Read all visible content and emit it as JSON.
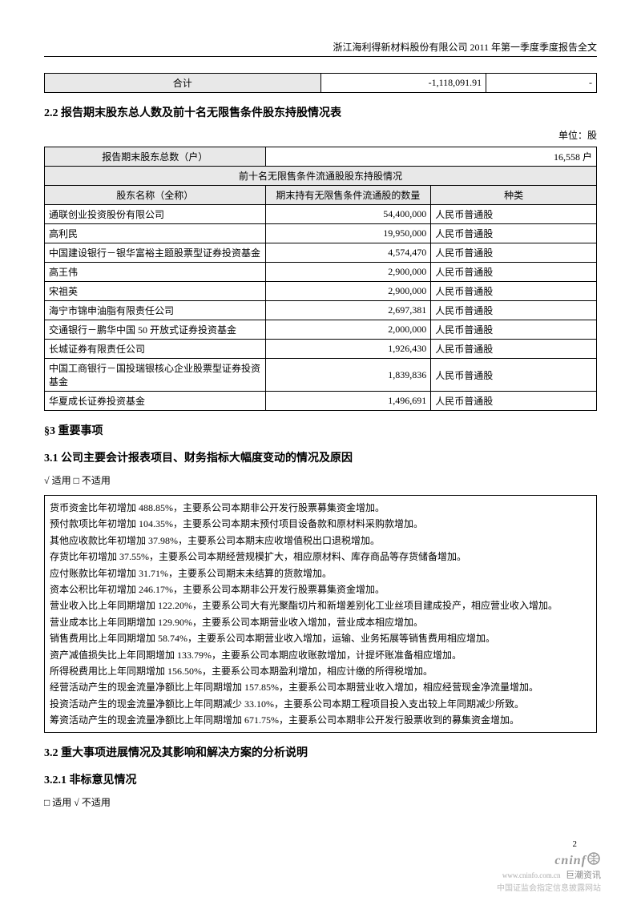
{
  "header": "浙江海利得新材料股份有限公司 2011 年第一季度季度报告全文",
  "total_table": {
    "label": "合计",
    "value": "-1,118,091.91",
    "value2": "-"
  },
  "section_2_2": {
    "title": "2.2 报告期末股东总人数及前十名无限售条件股东持股情况表",
    "unit": "单位：股",
    "shareholder_count_label": "报告期末股东总数（户）",
    "shareholder_count": "16,558 户",
    "sub_header": "前十名无限售条件流通股股东持股情况",
    "cols": [
      "股东名称（全称）",
      "期末持有无限售条件流通股的数量",
      "种类"
    ],
    "rows": [
      [
        "通联创业投资股份有限公司",
        "54,400,000",
        "人民币普通股"
      ],
      [
        "高利民",
        "19,950,000",
        "人民币普通股"
      ],
      [
        "中国建设银行－银华富裕主题股票型证券投资基金",
        "4,574,470",
        "人民币普通股"
      ],
      [
        "高王伟",
        "2,900,000",
        "人民币普通股"
      ],
      [
        "宋祖英",
        "2,900,000",
        "人民币普通股"
      ],
      [
        "海宁市锦申油脂有限责任公司",
        "2,697,381",
        "人民币普通股"
      ],
      [
        "交通银行－鹏华中国 50 开放式证券投资基金",
        "2,000,000",
        "人民币普通股"
      ],
      [
        "长城证券有限责任公司",
        "1,926,430",
        "人民币普通股"
      ],
      [
        "中国工商银行－国投瑞银核心企业股票型证券投资基金",
        "1,839,836",
        "人民币普通股"
      ],
      [
        "华夏成长证券投资基金",
        "1,496,691",
        "人民币普通股"
      ]
    ]
  },
  "section_3": "§3 重要事项",
  "section_3_1": {
    "title": "3.1 公司主要会计报表项目、财务指标大幅度变动的情况及原因",
    "apply": "√ 适用 □ 不适用",
    "lines": [
      "货币资金比年初增加 488.85%，主要系公司本期非公开发行股票募集资金增加。",
      "预付款项比年初增加 104.35%，主要系公司本期末预付项目设备款和原材料采购款增加。",
      "其他应收款比年初增加 37.98%，主要系公司本期末应收增值税出口退税增加。",
      "存货比年初增加 37.55%，主要系公司本期经营规模扩大，相应原材料、库存商品等存货储备增加。",
      "应付账款比年初增加 31.71%，主要系公司期末未结算的货款增加。",
      "资本公积比年初增加 246.17%，主要系公司本期非公开发行股票募集资金增加。",
      "营业收入比上年同期增加 122.20%，主要系公司大有光聚酯切片和新增差别化工业丝项目建成投产，相应营业收入增加。",
      "营业成本比上年同期增加 129.90%，主要系公司本期营业收入增加，营业成本相应增加。",
      "销售费用比上年同期增加 58.74%，主要系公司本期营业收入增加，运输、业务拓展等销售费用相应增加。",
      "资产减值损失比上年同期增加 133.79%，主要系公司本期应收账款增加，计提坏账准备相应增加。",
      "所得税费用比上年同期增加 156.50%，主要系公司本期盈利增加，相应计缴的所得税增加。",
      "经营活动产生的现金流量净额比上年同期增加 157.85%，主要系公司本期营业收入增加，相应经营现金净流量增加。",
      "投资活动产生的现金流量净额比上年同期减少 33.10%，主要系公司本期工程项目投入支出较上年同期减少所致。",
      "筹资活动产生的现金流量净额比上年同期增加 671.75%，主要系公司本期非公开发行股票收到的募集资金增加。"
    ]
  },
  "section_3_2": "3.2 重大事项进展情况及其影响和解决方案的分析说明",
  "section_3_2_1": {
    "title": "3.2.1 非标意见情况",
    "apply": "□ 适用 √ 不适用"
  },
  "page_num": "2",
  "logo": {
    "en": "cninf",
    "zh": "巨潮资讯",
    "url": "www.cninfo.com.cn"
  },
  "footer_note": "中国证监会指定信息披露网站"
}
